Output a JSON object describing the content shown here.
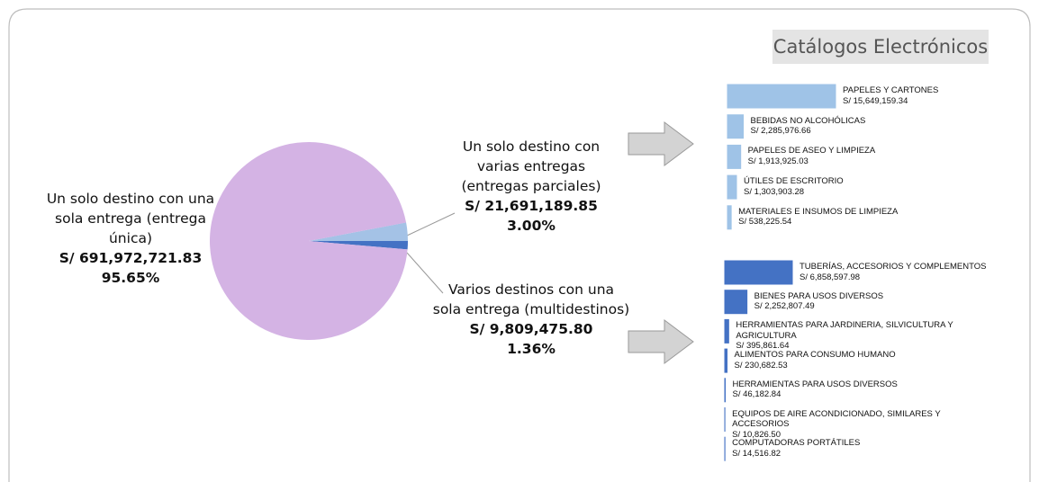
{
  "title": "Catálogos Electrónicos",
  "chart_data": [
    {
      "type": "pie",
      "categories": [
        "Un solo destino con una sola entrega (entrega única)",
        "Un solo destino con varias entregas (entregas parciales)",
        "Varios destinos con una sola entrega (multidestinos)"
      ],
      "values": [
        691972721.83,
        21691189.85,
        9809475.8
      ],
      "value_labels": [
        "S/ 691,972,721.83",
        "S/ 21,691,189.85",
        "S/ 9,809,475.80"
      ],
      "percentages": [
        95.65,
        3,
        1.36
      ],
      "percentage_labels": [
        "95.65%",
        "3.00%",
        "1.36%"
      ],
      "colors": [
        "#d4b3e4",
        "#a4c2e6",
        "#4472c4"
      ]
    },
    {
      "type": "bar",
      "orientation": "horizontal",
      "color": "#9fc3e7",
      "categories": [
        "PAPELES Y CARTONES",
        "BEBIDAS NO ALCOHÓLICAS",
        "PAPELES DE ASEO Y LIMPIEZA",
        "ÚTILES DE ESCRITORIO",
        "MATERIALES E INSUMOS DE LIMPIEZA"
      ],
      "values": [
        15649159.34,
        2285976.66,
        1913925.03,
        1303903.28,
        538225.54
      ],
      "value_labels": [
        "S/ 15,649,159.34",
        "S/ 2,285,976.66",
        "S/ 1,913,925.03",
        "S/ 1,303,903.28",
        "S/ 538,225.54"
      ]
    },
    {
      "type": "bar",
      "orientation": "horizontal",
      "color": "#4472c4",
      "categories": [
        "TUBERÍAS, ACCESORIOS Y COMPLEMENTOS",
        "BIENES PARA USOS DIVERSOS",
        "HERRAMIENTAS PARA JARDINERIA, SILVICULTURA Y AGRICULTURA",
        "ALIMENTOS PARA CONSUMO HUMANO",
        "HERRAMIENTAS PARA USOS DIVERSOS",
        "EQUIPOS DE AIRE ACONDICIONADO, SIMILARES Y ACCESORIOS",
        "COMPUTADORAS PORTÁTILES"
      ],
      "values": [
        6858597.98,
        2252807.49,
        395861.64,
        230682.53,
        46182.84,
        10826.5,
        14516.82
      ],
      "value_labels": [
        "S/ 6,858,597.98",
        "S/ 2,252,807.49",
        "S/ 395,861.64",
        "S/ 230,682.53",
        "S/ 46,182.84",
        "S/ 10,826.50",
        "S/ 14,516.82"
      ]
    }
  ]
}
